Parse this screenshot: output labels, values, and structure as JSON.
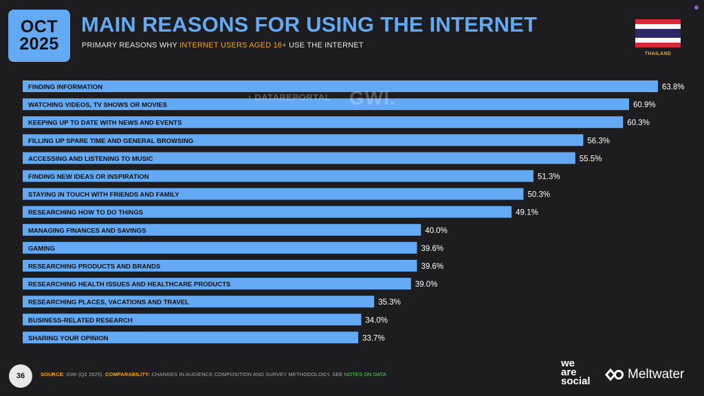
{
  "header": {
    "month": "OCT",
    "year": "2025",
    "title": "MAIN REASONS FOR USING THE INTERNET",
    "subtitle_pre": "PRIMARY REASONS WHY ",
    "subtitle_highlight": "INTERNET USERS AGED 16+",
    "subtitle_post": " USE THE INTERNET",
    "country": "THAILAND"
  },
  "watermark": {
    "brand1": "DATAREPORTAL",
    "brand2": "GWI."
  },
  "footer": {
    "page": "36",
    "source_label": "SOURCE:",
    "source_text": " GWI (Q2 2025). ",
    "comparability_label": "COMPARABILITY:",
    "comparability_text": " CHANGES IN AUDIENCE COMPOSITION AND SURVEY METHODOLOGY. SEE ",
    "notes_link": "NOTES ON DATA",
    "logo_was": [
      "we",
      "are",
      "social"
    ],
    "logo_meltwater": "Meltwater"
  },
  "colors": {
    "bar": "#64a9f4",
    "accent": "#f5a623",
    "background": "#1d1d1f"
  },
  "chart_data": {
    "type": "bar",
    "orientation": "horizontal",
    "categories": [
      "FINDING INFORMATION",
      "WATCHING VIDEOS, TV SHOWS OR MOVIES",
      "KEEPING UP TO DATE WITH NEWS AND EVENTS",
      "FILLING UP SPARE TIME AND GENERAL BROWSING",
      "ACCESSING AND LISTENING TO MUSIC",
      "FINDING NEW IDEAS OR INSPIRATION",
      "STAYING IN TOUCH WITH FRIENDS AND FAMILY",
      "RESEARCHING HOW TO DO THINGS",
      "MANAGING FINANCES AND SAVINGS",
      "GAMING",
      "RESEARCHING PRODUCTS AND BRANDS",
      "RESEARCHING HEALTH ISSUES AND HEALTHCARE PRODUCTS",
      "RESEARCHING PLACES, VACATIONS AND TRAVEL",
      "BUSINESS-RELATED RESEARCH",
      "SHARING YOUR OPINION"
    ],
    "values": [
      63.8,
      60.9,
      60.3,
      56.3,
      55.5,
      51.3,
      50.3,
      49.1,
      40.0,
      39.6,
      39.6,
      39.0,
      35.3,
      34.0,
      33.7
    ],
    "value_labels": [
      "63.8%",
      "60.9%",
      "60.3%",
      "56.3%",
      "55.5%",
      "51.3%",
      "50.3%",
      "49.1%",
      "40.0%",
      "39.6%",
      "39.6%",
      "39.0%",
      "35.3%",
      "34.0%",
      "33.7%"
    ],
    "xlim": [
      0,
      63.8
    ],
    "grid": false
  }
}
